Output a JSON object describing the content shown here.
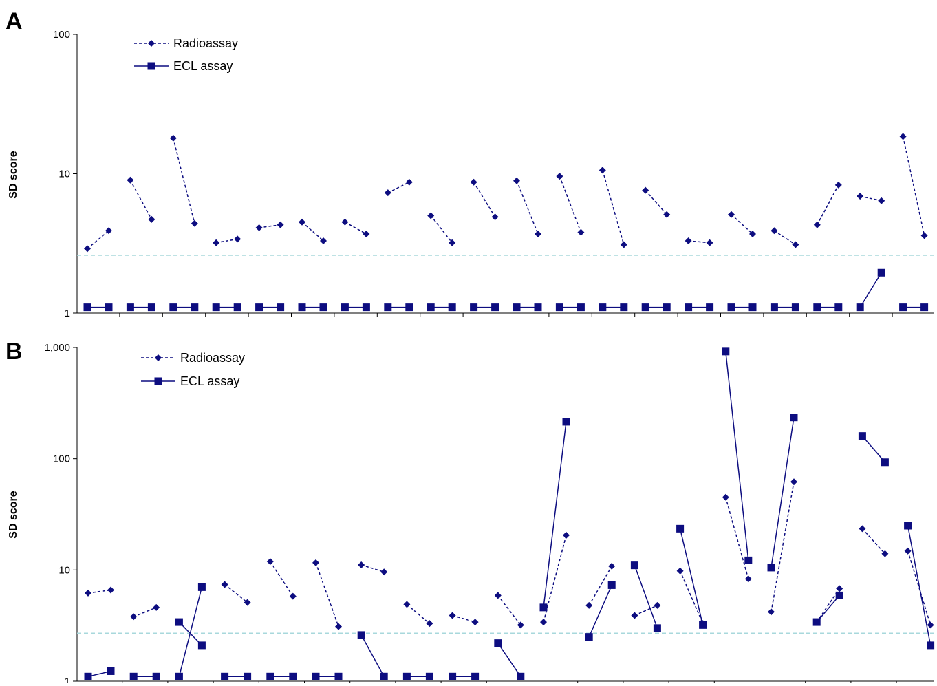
{
  "panels": [
    {
      "label": "A",
      "ylabel": "SD score"
    },
    {
      "label": "B",
      "ylabel": "SD score"
    }
  ],
  "colors": {
    "series": "#0d0d80",
    "threshold": "#a8d8dc",
    "axis": "#000000"
  },
  "chart_data": [
    {
      "type": "line",
      "title": "",
      "panel_label": "A",
      "xlabel": "",
      "ylabel": "SD score",
      "yscale": "log",
      "ylim": [
        1,
        100
      ],
      "yticks": [
        "1",
        "10",
        "100"
      ],
      "grid": false,
      "legend": "top-left",
      "threshold": 2.6,
      "series": [
        {
          "name": "Radioassay",
          "marker": "diamond",
          "linestyle": "dashed",
          "pairs": [
            [
              2.9,
              3.9
            ],
            [
              9.0,
              4.7
            ],
            [
              18.0,
              4.4
            ],
            [
              3.2,
              3.4
            ],
            [
              4.1,
              4.3
            ],
            [
              4.5,
              3.3
            ],
            [
              4.5,
              3.7
            ],
            [
              7.3,
              8.7
            ],
            [
              5.0,
              3.2
            ],
            [
              8.7,
              4.9
            ],
            [
              8.9,
              3.7
            ],
            [
              9.6,
              3.8
            ],
            [
              10.6,
              3.1
            ],
            [
              7.6,
              5.1
            ],
            [
              3.3,
              3.2
            ],
            [
              5.1,
              3.7
            ],
            [
              3.9,
              3.1
            ],
            [
              4.3,
              8.3
            ],
            [
              6.9,
              6.4
            ],
            [
              18.5,
              3.6
            ]
          ]
        },
        {
          "name": "ECL assay",
          "marker": "square",
          "linestyle": "solid",
          "pairs": [
            [
              1.1,
              1.1
            ],
            [
              1.1,
              1.1
            ],
            [
              1.1,
              1.1
            ],
            [
              1.1,
              1.1
            ],
            [
              1.1,
              1.1
            ],
            [
              1.1,
              1.1
            ],
            [
              1.1,
              1.1
            ],
            [
              1.1,
              1.1
            ],
            [
              1.1,
              1.1
            ],
            [
              1.1,
              1.1
            ],
            [
              1.1,
              1.1
            ],
            [
              1.1,
              1.1
            ],
            [
              1.1,
              1.1
            ],
            [
              1.1,
              1.1
            ],
            [
              1.1,
              1.1
            ],
            [
              1.1,
              1.1
            ],
            [
              1.1,
              1.1
            ],
            [
              1.1,
              1.1
            ],
            [
              1.1,
              1.95
            ],
            [
              1.1,
              1.1
            ]
          ]
        }
      ]
    },
    {
      "type": "line",
      "title": "",
      "panel_label": "B",
      "xlabel": "",
      "ylabel": "SD score",
      "yscale": "log",
      "ylim": [
        1,
        1000
      ],
      "yticks": [
        "1",
        "10",
        "100",
        "1,000"
      ],
      "grid": false,
      "legend": "top-left",
      "threshold": 2.7,
      "series": [
        {
          "name": "Radioassay",
          "marker": "diamond",
          "linestyle": "dashed",
          "pairs": [
            [
              6.2,
              6.6
            ],
            [
              3.8,
              4.6
            ],
            null,
            [
              7.4,
              5.1
            ],
            [
              11.9,
              5.8
            ],
            [
              11.6,
              3.1
            ],
            [
              11.1,
              9.6
            ],
            [
              4.9,
              3.3
            ],
            [
              3.9,
              3.4
            ],
            [
              5.9,
              3.2
            ],
            [
              3.4,
              20.5
            ],
            [
              4.8,
              10.8
            ],
            [
              3.9,
              4.8
            ],
            [
              9.8,
              3.3
            ],
            [
              45.0,
              8.3
            ],
            [
              4.2,
              62.0
            ],
            [
              3.4,
              6.8
            ],
            [
              23.5,
              14.0
            ],
            [
              14.8,
              3.2
            ]
          ]
        },
        {
          "name": "ECL assay",
          "marker": "square",
          "linestyle": "solid",
          "pairs": [
            [
              1.1,
              1.23
            ],
            [
              1.1,
              1.1
            ],
            [
              1.1,
              7.0
            ],
            [
              1.1,
              1.1
            ],
            [
              1.1,
              1.1
            ],
            [
              1.1,
              1.1
            ],
            [
              2.6,
              1.1
            ],
            [
              1.1,
              1.1
            ],
            [
              1.1,
              1.1
            ],
            [
              2.2,
              1.1
            ],
            [
              4.6,
              215.0
            ],
            [
              2.5,
              7.3
            ],
            [
              11.0,
              3.0
            ],
            [
              23.5,
              3.2
            ],
            [
              920.0,
              12.2
            ],
            [
              10.5,
              235.0
            ],
            [
              3.4,
              5.9
            ],
            [
              160.0,
              93.0
            ],
            [
              25.0,
              2.1
            ]
          ]
        },
        {
          "name": "",
          "marker": "square",
          "linestyle": "solid",
          "pairs": [
            null,
            null,
            [
              3.4,
              2.1
            ]
          ]
        }
      ]
    }
  ]
}
